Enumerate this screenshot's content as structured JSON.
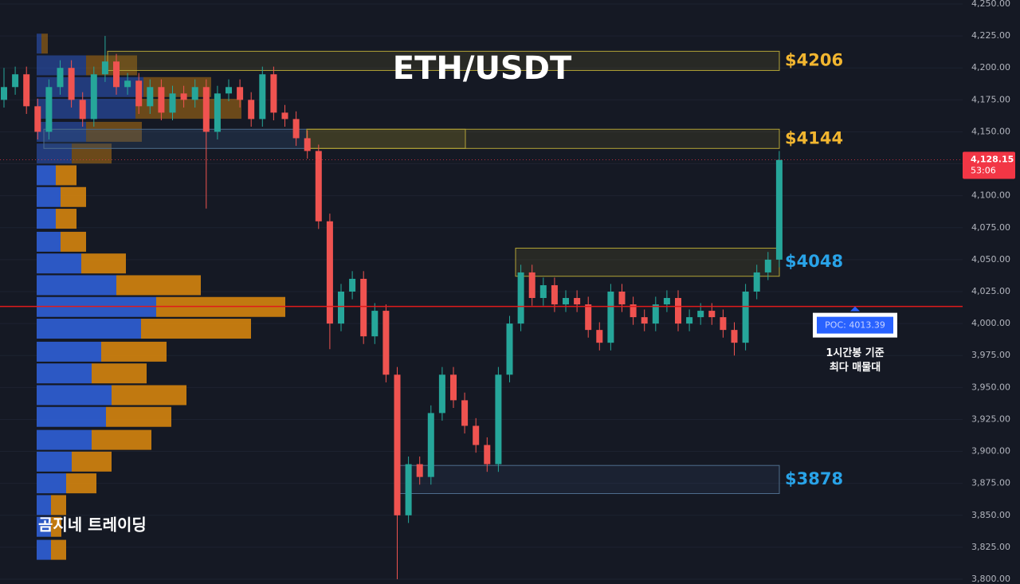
{
  "chart_data": {
    "type": "candlestick",
    "title": "ETH/USDT",
    "watermark": "곰지네 트레이딩",
    "up_color": "#26a69a",
    "down_color": "#ef5350",
    "grid": true,
    "ylim": [
      3800,
      4250
    ],
    "yticks": [
      {
        "value": 3800,
        "label": "3,800.00"
      },
      {
        "value": 3825,
        "label": "3,825.00"
      },
      {
        "value": 3850,
        "label": "3,850.00"
      },
      {
        "value": 3875,
        "label": "3,875.00"
      },
      {
        "value": 3900,
        "label": "3,900.00"
      },
      {
        "value": 3925,
        "label": "3,925.00"
      },
      {
        "value": 3950,
        "label": "3,950.00"
      },
      {
        "value": 3975,
        "label": "3,975.00"
      },
      {
        "value": 4000,
        "label": "4,000.00"
      },
      {
        "value": 4025,
        "label": "4,025.00"
      },
      {
        "value": 4050,
        "label": "4,050.00"
      },
      {
        "value": 4075,
        "label": "4,075.00"
      },
      {
        "value": 4100,
        "label": "4,100.00"
      },
      {
        "value": 4125,
        "label": "4,125.00"
      },
      {
        "value": 4150,
        "label": "4,150.00"
      },
      {
        "value": 4175,
        "label": "4,175.00"
      },
      {
        "value": 4200,
        "label": "4,200.00"
      },
      {
        "value": 4225,
        "label": "4,225.00"
      },
      {
        "value": 4250,
        "label": "4,250.00"
      }
    ],
    "open": [
      4175,
      4185,
      4195,
      4170,
      4150,
      4185,
      4200,
      4175,
      4160,
      4195,
      4205,
      4185,
      4190,
      4170,
      4185,
      4165,
      4180,
      4175,
      4185,
      4150,
      4180,
      4185,
      4175,
      4160,
      4195,
      4165,
      4160,
      4145,
      4135,
      4080,
      4000,
      4025,
      4035,
      3990,
      4010,
      3960,
      3850,
      3890,
      3880,
      3930,
      3960,
      3940,
      3920,
      3905,
      3890,
      3960,
      4000,
      4040,
      4020,
      4030,
      4015,
      4020,
      4015,
      3995,
      3985,
      4025,
      4015,
      4005,
      4000,
      4015,
      4020,
      4000,
      4005,
      4010,
      4005,
      3995,
      3985,
      4025,
      4040,
      4050
    ],
    "high": [
      4200,
      4201,
      4201,
      4176,
      4191,
      4206,
      4206,
      4181,
      4201,
      4225,
      4211,
      4196,
      4196,
      4191,
      4191,
      4186,
      4186,
      4191,
      4191,
      4186,
      4191,
      4191,
      4181,
      4201,
      4201,
      4171,
      4166,
      4151,
      4140,
      4086,
      4031,
      4041,
      4041,
      4016,
      4015,
      3966,
      3896,
      3896,
      3936,
      3966,
      3966,
      3946,
      3926,
      3911,
      3966,
      4006,
      4046,
      4046,
      4036,
      4036,
      4026,
      4026,
      4021,
      4001,
      4031,
      4031,
      4021,
      4011,
      4021,
      4026,
      4026,
      4011,
      4016,
      4016,
      4011,
      4001,
      4031,
      4046,
      4056,
      4135
    ],
    "low": [
      4169,
      4179,
      4164,
      4144,
      4144,
      4179,
      4169,
      4154,
      4154,
      4189,
      4179,
      4179,
      4164,
      4164,
      4159,
      4159,
      4169,
      4169,
      4090,
      4144,
      4174,
      4169,
      4154,
      4154,
      4159,
      4154,
      4139,
      4129,
      4074,
      3980,
      3994,
      4019,
      3984,
      3984,
      3954,
      3800,
      3844,
      3874,
      3874,
      3924,
      3934,
      3914,
      3899,
      3884,
      3884,
      3954,
      3994,
      4014,
      4014,
      4009,
      4009,
      4009,
      3989,
      3979,
      3979,
      4009,
      3999,
      3994,
      3994,
      4009,
      3994,
      3994,
      3999,
      3999,
      3989,
      3975,
      3979,
      4019,
      4034,
      4044
    ],
    "close": [
      4185,
      4195,
      4170,
      4150,
      4185,
      4200,
      4175,
      4160,
      4195,
      4205,
      4185,
      4190,
      4170,
      4185,
      4165,
      4180,
      4175,
      4185,
      4150,
      4180,
      4185,
      4175,
      4160,
      4195,
      4165,
      4160,
      4145,
      4135,
      4080,
      4000,
      4025,
      4035,
      3990,
      4010,
      3960,
      3850,
      3890,
      3880,
      3930,
      3960,
      3940,
      3920,
      3905,
      3890,
      3960,
      4000,
      4040,
      4020,
      4030,
      4015,
      4020,
      4015,
      3995,
      3985,
      4025,
      4015,
      4005,
      4000,
      4015,
      4020,
      4000,
      4005,
      4010,
      4005,
      3995,
      3985,
      4025,
      4040,
      4050,
      4128
    ],
    "last_price": {
      "value": 4128.15,
      "label": "4,128.15",
      "countdown": "53:06",
      "color": "#f23645"
    },
    "poc": {
      "value": 4013.39,
      "label": "POC: 4013.39",
      "note": [
        "1시간봉 기준",
        "최다 매물대"
      ],
      "color": "#e01b1b"
    },
    "zones": [
      {
        "label": "$4206",
        "low": 4198,
        "high": 4213,
        "color": "#f2b630"
      },
      {
        "label": "$4144",
        "low": 4137,
        "high": 4152,
        "color": "#f2b630"
      },
      {
        "label": "$4048",
        "low": 4037,
        "high": 4059,
        "color": "#29a3e8"
      },
      {
        "label": "$3878",
        "low": 3867,
        "high": 3889,
        "color": "#29a3e8"
      }
    ],
    "volume_profile": {
      "buy_color": "#2f5fd6",
      "sell_color": "#d4840e",
      "levels": [
        4219,
        4202,
        4185,
        4168,
        4150,
        4133,
        4116,
        4099,
        4082,
        4064,
        4047,
        4030,
        4013,
        3996,
        3978,
        3961,
        3944,
        3927,
        3909,
        3892,
        3875,
        3858,
        3841,
        3823
      ],
      "buy": [
        6,
        62,
        134,
        124,
        62,
        44,
        24,
        30,
        24,
        30,
        56,
        100,
        150,
        131,
        81,
        69,
        94,
        87,
        69,
        44,
        37,
        18,
        18,
        18
      ],
      "sell": [
        8,
        64,
        85,
        133,
        70,
        50,
        26,
        32,
        26,
        32,
        56,
        106,
        162,
        138,
        82,
        69,
        94,
        82,
        75,
        50,
        38,
        19,
        13,
        19
      ]
    }
  }
}
